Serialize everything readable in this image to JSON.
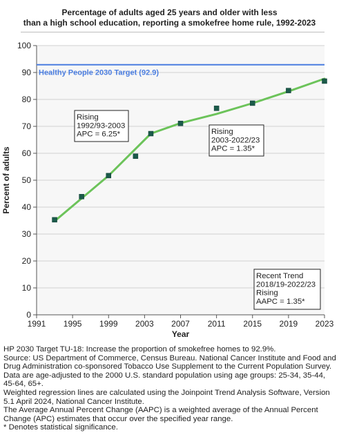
{
  "title_line1": "Percentage of adults aged 25 years and older with less",
  "title_line2": "than a high school education, reporting a smokefree home rule, 1992-2023",
  "chart_data": {
    "type": "scatter",
    "xlabel": "Year",
    "ylabel": "Percent of adults",
    "xlim": [
      1991,
      2023
    ],
    "ylim": [
      0,
      100
    ],
    "xticks": [
      1991,
      1995,
      1999,
      2003,
      2007,
      2011,
      2015,
      2019,
      2023
    ],
    "yticks": [
      0,
      10,
      20,
      30,
      40,
      50,
      60,
      70,
      80,
      90,
      100
    ],
    "grid": "horizontal",
    "points": [
      {
        "x": 1993,
        "y": 35.3
      },
      {
        "x": 1996,
        "y": 43.9
      },
      {
        "x": 1999,
        "y": 51.7
      },
      {
        "x": 2002,
        "y": 58.9
      },
      {
        "x": 2003.7,
        "y": 67.3
      },
      {
        "x": 2007,
        "y": 71.1
      },
      {
        "x": 2011,
        "y": 76.7
      },
      {
        "x": 2015,
        "y": 78.6
      },
      {
        "x": 2019,
        "y": 83.3
      },
      {
        "x": 2023,
        "y": 86.8
      }
    ],
    "trend_line": [
      {
        "x": 1993,
        "y": 34.8
      },
      {
        "x": 1999,
        "y": 51.7
      },
      {
        "x": 2003.7,
        "y": 67.3
      },
      {
        "x": 2007,
        "y": 71.2
      },
      {
        "x": 2011,
        "y": 74.6
      },
      {
        "x": 2015,
        "y": 78.6
      },
      {
        "x": 2019,
        "y": 83.0
      },
      {
        "x": 2023,
        "y": 87.7
      }
    ],
    "target": {
      "label": "Healthy People 2030 Target (92.9)",
      "value": 92.9
    },
    "annotations": [
      {
        "lines": [
          "Rising",
          "1992/93-2003",
          "APC =  6.25*"
        ]
      },
      {
        "lines": [
          "Rising",
          "2003-2022/23",
          "APC =  1.35*"
        ]
      },
      {
        "lines": [
          "Recent Trend",
          "2018/19-2022/23",
          "Rising",
          "AAPC =  1.35*"
        ]
      }
    ],
    "colors": {
      "trend": "#6cc35a",
      "marker": "#1b5a4a",
      "target": "#4a7de0",
      "grid": "#d2d2d2",
      "plot_bg": "#f7f7f7"
    }
  },
  "footnotes": [
    "HP 2030 Target TU-18: Increase the proportion of smokefree homes to 92.9%.",
    "Source: US Department of Commerce, Census Bureau. National Cancer Institute and Food and Drug Administration co-sponsored Tobacco Use Supplement to the Current Population Survey.",
    "Data are age-adjusted to the 2000 U.S. standard population using age groups: 25-34, 35-44, 45-64, 65+.",
    "Weighted regression lines are calculated using the Joinpoint Trend Analysis Software, Version 5.1 April 2024, National Cancer Institute.",
    "The Average Annual Percent Change (AAPC) is a weighted average of the Annual Percent Change (APC) estimates that occur over the specified year range.",
    "* Denotes statistical significance."
  ]
}
